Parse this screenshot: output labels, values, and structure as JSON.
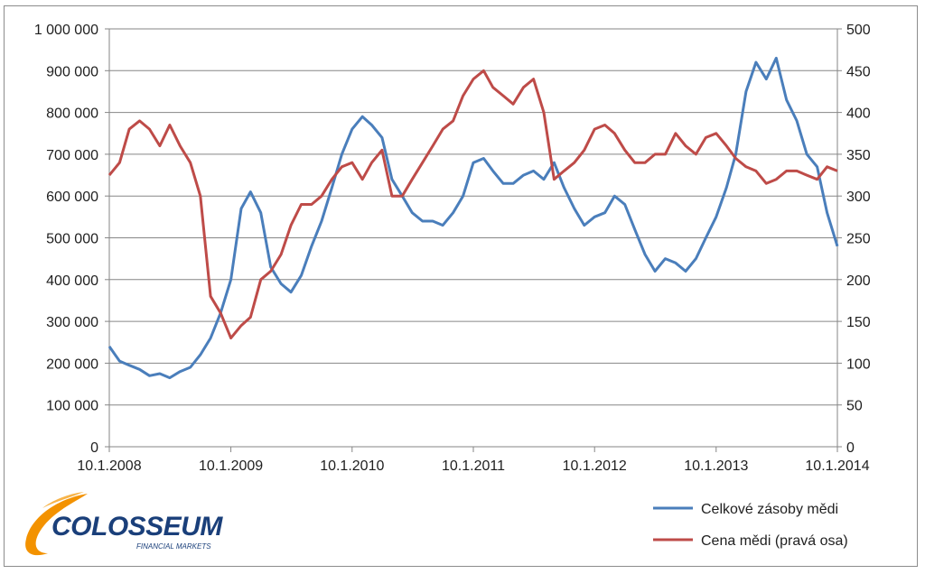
{
  "logo": {
    "name": "COLOSSEUM",
    "tagline": "FINANCIAL MARKETS",
    "colors": {
      "text": "#1a3f7a",
      "swoosh": "#f39200"
    }
  },
  "chart_data": {
    "type": "line",
    "grid": true,
    "legend_position": "bottom-right",
    "x_ticks": [
      "10.1.2008",
      "10.1.2009",
      "10.1.2010",
      "10.1.2011",
      "10.1.2012",
      "10.1.2013",
      "10.1.2014"
    ],
    "xlim": [
      "2008-01-10",
      "2014-01-10"
    ],
    "y_left": {
      "lim": [
        0,
        1000000
      ],
      "ticks": [
        "0",
        "100 000",
        "200 000",
        "300 000",
        "400 000",
        "500 000",
        "600 000",
        "700 000",
        "800 000",
        "900 000",
        "1 000 000"
      ]
    },
    "y_right": {
      "lim": [
        0,
        500
      ],
      "ticks": [
        "0",
        "50",
        "100",
        "150",
        "200",
        "250",
        "300",
        "350",
        "400",
        "450",
        "500"
      ]
    },
    "series": [
      {
        "name": "Celkové zásoby mědi",
        "axis": "left",
        "color": "#4a7ebb",
        "x": [
          "2008-01-10",
          "2008-02-10",
          "2008-03-10",
          "2008-04-10",
          "2008-05-10",
          "2008-06-10",
          "2008-07-10",
          "2008-08-10",
          "2008-09-10",
          "2008-10-10",
          "2008-11-10",
          "2008-12-10",
          "2009-01-10",
          "2009-02-10",
          "2009-03-10",
          "2009-04-10",
          "2009-05-10",
          "2009-06-10",
          "2009-07-10",
          "2009-08-10",
          "2009-09-10",
          "2009-10-10",
          "2009-11-10",
          "2009-12-10",
          "2010-01-10",
          "2010-02-10",
          "2010-03-10",
          "2010-04-10",
          "2010-05-10",
          "2010-06-10",
          "2010-07-10",
          "2010-08-10",
          "2010-09-10",
          "2010-10-10",
          "2010-11-10",
          "2010-12-10",
          "2011-01-10",
          "2011-02-10",
          "2011-03-10",
          "2011-04-10",
          "2011-05-10",
          "2011-06-10",
          "2011-07-10",
          "2011-08-10",
          "2011-09-10",
          "2011-10-10",
          "2011-11-10",
          "2011-12-10",
          "2012-01-10",
          "2012-02-10",
          "2012-03-10",
          "2012-04-10",
          "2012-05-10",
          "2012-06-10",
          "2012-07-10",
          "2012-08-10",
          "2012-09-10",
          "2012-10-10",
          "2012-11-10",
          "2012-12-10",
          "2013-01-10",
          "2013-02-10",
          "2013-03-10",
          "2013-04-10",
          "2013-05-10",
          "2013-06-10",
          "2013-07-10",
          "2013-08-10",
          "2013-09-10",
          "2013-10-10",
          "2013-11-10",
          "2013-12-10",
          "2014-01-10"
        ],
        "values": [
          240000,
          205000,
          195000,
          185000,
          170000,
          175000,
          165000,
          180000,
          190000,
          220000,
          260000,
          320000,
          400000,
          570000,
          610000,
          560000,
          430000,
          390000,
          370000,
          410000,
          480000,
          540000,
          620000,
          700000,
          760000,
          790000,
          770000,
          740000,
          640000,
          600000,
          560000,
          540000,
          540000,
          530000,
          560000,
          600000,
          680000,
          690000,
          660000,
          630000,
          630000,
          650000,
          660000,
          640000,
          680000,
          620000,
          570000,
          530000,
          550000,
          560000,
          600000,
          580000,
          520000,
          460000,
          420000,
          450000,
          440000,
          420000,
          450000,
          500000,
          550000,
          620000,
          700000,
          850000,
          920000,
          880000,
          930000,
          830000,
          780000,
          700000,
          670000,
          560000,
          480000
        ]
      },
      {
        "name": "Cena mědi (pravá osa)",
        "axis": "right",
        "color": "#be4b48",
        "x": [
          "2008-01-10",
          "2008-02-10",
          "2008-03-10",
          "2008-04-10",
          "2008-05-10",
          "2008-06-10",
          "2008-07-10",
          "2008-08-10",
          "2008-09-10",
          "2008-10-10",
          "2008-11-10",
          "2008-12-10",
          "2009-01-10",
          "2009-02-10",
          "2009-03-10",
          "2009-04-10",
          "2009-05-10",
          "2009-06-10",
          "2009-07-10",
          "2009-08-10",
          "2009-09-10",
          "2009-10-10",
          "2009-11-10",
          "2009-12-10",
          "2010-01-10",
          "2010-02-10",
          "2010-03-10",
          "2010-04-10",
          "2010-05-10",
          "2010-06-10",
          "2010-07-10",
          "2010-08-10",
          "2010-09-10",
          "2010-10-10",
          "2010-11-10",
          "2010-12-10",
          "2011-01-10",
          "2011-02-10",
          "2011-03-10",
          "2011-04-10",
          "2011-05-10",
          "2011-06-10",
          "2011-07-10",
          "2011-08-10",
          "2011-09-10",
          "2011-10-10",
          "2011-11-10",
          "2011-12-10",
          "2012-01-10",
          "2012-02-10",
          "2012-03-10",
          "2012-04-10",
          "2012-05-10",
          "2012-06-10",
          "2012-07-10",
          "2012-08-10",
          "2012-09-10",
          "2012-10-10",
          "2012-11-10",
          "2012-12-10",
          "2013-01-10",
          "2013-02-10",
          "2013-03-10",
          "2013-04-10",
          "2013-05-10",
          "2013-06-10",
          "2013-07-10",
          "2013-08-10",
          "2013-09-10",
          "2013-10-10",
          "2013-11-10",
          "2013-12-10",
          "2014-01-10"
        ],
        "values": [
          325,
          340,
          380,
          390,
          380,
          360,
          385,
          360,
          340,
          300,
          180,
          160,
          130,
          145,
          155,
          200,
          210,
          230,
          265,
          290,
          290,
          300,
          320,
          335,
          340,
          320,
          340,
          355,
          300,
          300,
          320,
          340,
          360,
          380,
          390,
          420,
          440,
          450,
          430,
          420,
          410,
          430,
          440,
          400,
          320,
          330,
          340,
          355,
          380,
          385,
          375,
          355,
          340,
          340,
          350,
          350,
          375,
          360,
          350,
          370,
          375,
          360,
          345,
          335,
          330,
          315,
          320,
          330,
          330,
          325,
          320,
          335,
          330
        ]
      }
    ]
  }
}
